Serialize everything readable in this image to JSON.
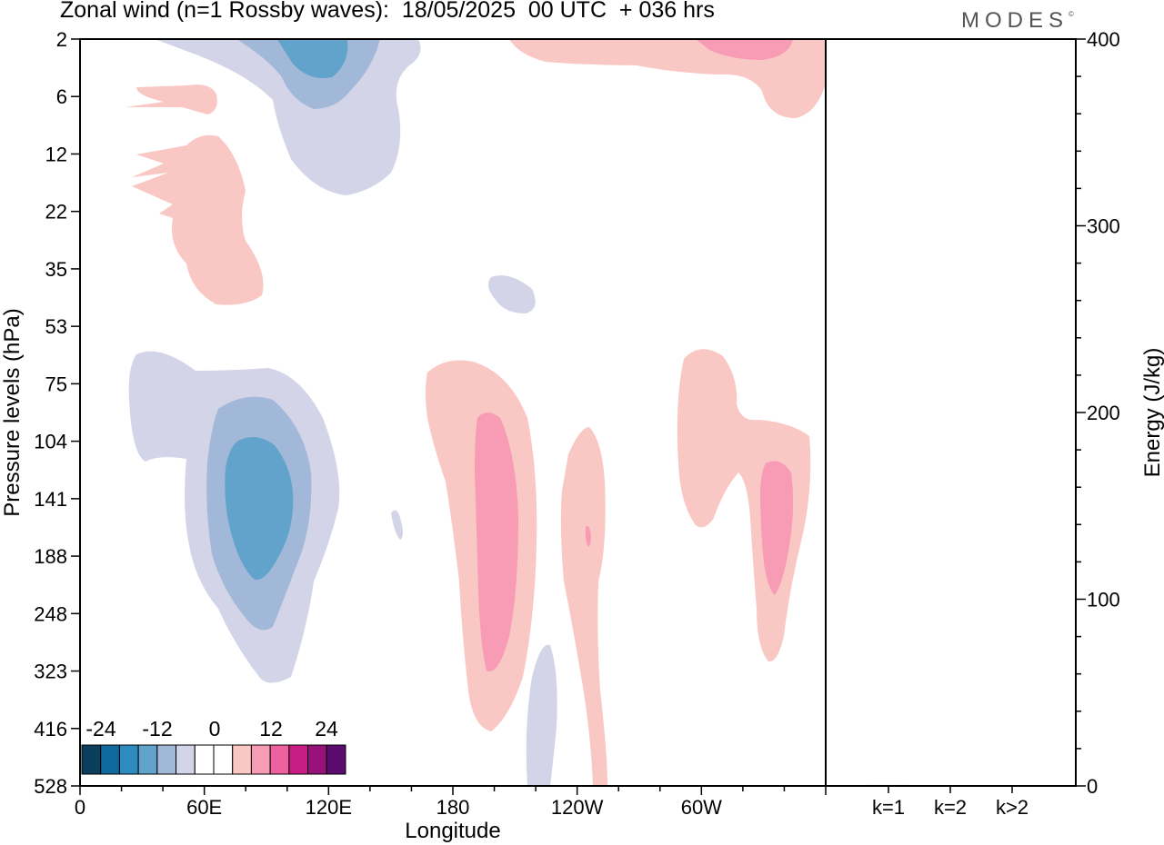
{
  "title": "Zonal wind (n=1 Rossby waves):  18/05/2025  00 UTC  + 036 hrs",
  "logo": "MODES",
  "logo_mark": "©",
  "chart_data": [
    {
      "type": "heatmap",
      "title": "Zonal wind (n=1 Rossby waves):  18/05/2025  00 UTC  + 036 hrs",
      "xlabel": "Longitude",
      "ylabel": "Pressure levels (hPa)",
      "x_ticks": [
        "0",
        "60E",
        "120E",
        "180",
        "120W",
        "60W"
      ],
      "x_tick_values": [
        0,
        60,
        120,
        180,
        240,
        300
      ],
      "xlim": [
        0,
        360
      ],
      "y_ticks": [
        "2",
        "6",
        "12",
        "22",
        "35",
        "53",
        "75",
        "104",
        "141",
        "188",
        "248",
        "323",
        "416",
        "528"
      ],
      "colorbar": {
        "labels": [
          "-24",
          "-12",
          "0",
          "12",
          "24"
        ],
        "colors": [
          "#0b3d5c",
          "#0e6a9e",
          "#2e8bc0",
          "#62a3cb",
          "#a2b8d9",
          "#d3d4e7",
          "#ffffff",
          "#ffffff",
          "#f9c7c4",
          "#f79cb4",
          "#ec619e",
          "#c91d86",
          "#99117a",
          "#5b0a6e"
        ]
      },
      "regions": [
        {
          "sign": "negative",
          "level": 1,
          "lon_range": [
            40,
            125
          ],
          "p_range": [
            75,
            323
          ],
          "label": "negative anomaly lower stratosphere/upper troposphere near 80E"
        },
        {
          "sign": "negative",
          "level": 3,
          "lon_range": [
            65,
            100
          ],
          "p_range": [
            104,
            188
          ]
        },
        {
          "sign": "positive",
          "level": 2,
          "lon_range": [
            190,
            208
          ],
          "p_range": [
            104,
            323
          ]
        },
        {
          "sign": "positive",
          "level": 1,
          "lon_range": [
            168,
            218
          ],
          "p_range": [
            75,
            416
          ]
        },
        {
          "sign": "positive",
          "level": 1,
          "lon_range": [
            230,
            258
          ],
          "p_range": [
            104,
            528
          ]
        },
        {
          "sign": "positive",
          "level": 1,
          "lon_range": [
            290,
            345
          ],
          "p_range": [
            75,
            323
          ]
        },
        {
          "sign": "positive",
          "level": 2,
          "lon_range": [
            327,
            345
          ],
          "p_range": [
            141,
            248
          ]
        },
        {
          "sign": "negative",
          "level": 1,
          "lon_range": [
            40,
            165
          ],
          "p_range": [
            2,
            22
          ]
        },
        {
          "sign": "negative",
          "level": 3,
          "lon_range": [
            100,
            130
          ],
          "p_range": [
            2,
            6
          ]
        },
        {
          "sign": "positive",
          "level": 1,
          "lon_range": [
            20,
            85
          ],
          "p_range": [
            6,
            53
          ]
        },
        {
          "sign": "positive",
          "level": 1,
          "lon_range": [
            210,
            360
          ],
          "p_range": [
            2,
            6
          ]
        }
      ]
    },
    {
      "type": "bar",
      "ylabel": "Energy (J/kg)",
      "categories": [
        "k=1",
        "k=2",
        "k>2"
      ],
      "values": [
        0.5,
        0.1,
        0.4
      ],
      "ylim": [
        0,
        400
      ],
      "y_ticks": [
        "0",
        "100",
        "200",
        "300",
        "400"
      ]
    }
  ]
}
